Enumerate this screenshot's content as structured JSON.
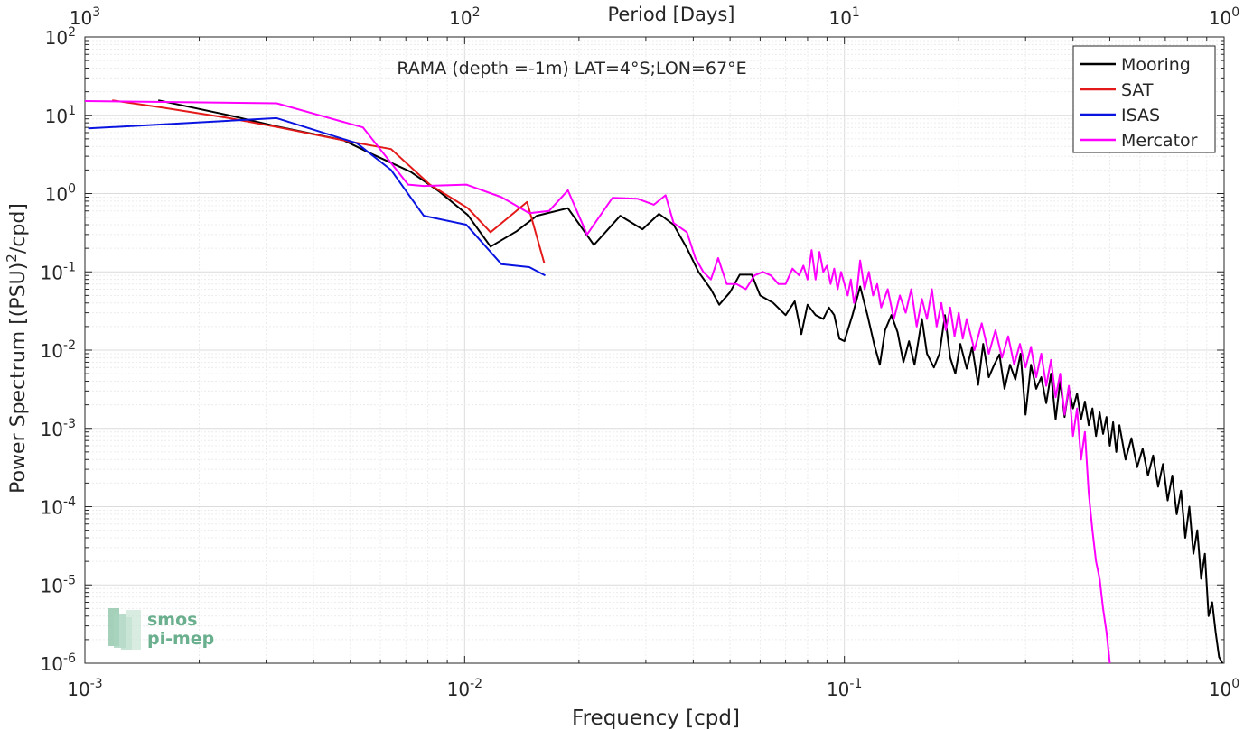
{
  "chart_data": {
    "type": "line",
    "title": "RAMA (depth =-1m) LAT=4°S;LON=67°E",
    "xlabel": "Frequency [cpd]",
    "ylabel_main": "Power Spectrum [(PSU)",
    "ylabel_sup": "2",
    "ylabel_tail": "/cpd]",
    "top_axis_label": "Period [Days]",
    "x_scale": "log",
    "y_scale": "log",
    "xlim": [
      0.001,
      1
    ],
    "ylim": [
      1e-06,
      100
    ],
    "grid": true,
    "legend_position": "top-right",
    "x_ticks": [
      {
        "v": 0.001,
        "base": "10",
        "exp": "-3"
      },
      {
        "v": 0.01,
        "base": "10",
        "exp": "-2"
      },
      {
        "v": 0.1,
        "base": "10",
        "exp": "-1"
      },
      {
        "v": 1,
        "base": "10",
        "exp": "0"
      }
    ],
    "top_ticks": [
      {
        "v": 0.001,
        "base": "10",
        "exp": "3"
      },
      {
        "v": 0.01,
        "base": "10",
        "exp": "2"
      },
      {
        "v": 0.1,
        "base": "10",
        "exp": "1"
      },
      {
        "v": 1,
        "base": "10",
        "exp": "0"
      }
    ],
    "y_ticks": [
      {
        "v": 100,
        "base": "10",
        "exp": "2"
      },
      {
        "v": 10,
        "base": "10",
        "exp": "1"
      },
      {
        "v": 1,
        "base": "10",
        "exp": "0"
      },
      {
        "v": 0.1,
        "base": "10",
        "exp": "-1"
      },
      {
        "v": 0.01,
        "base": "10",
        "exp": "-2"
      },
      {
        "v": 0.001,
        "base": "10",
        "exp": "-3"
      },
      {
        "v": 0.0001,
        "base": "10",
        "exp": "-4"
      },
      {
        "v": 1e-05,
        "base": "10",
        "exp": "-5"
      },
      {
        "v": 1e-06,
        "base": "10",
        "exp": "-6"
      }
    ],
    "series": [
      {
        "name": "Mooring",
        "color": "#000000",
        "points": [
          [
            0.00156,
            15.5
          ],
          [
            0.0024,
            10
          ],
          [
            0.0032,
            7.2
          ],
          [
            0.0048,
            4.8
          ],
          [
            0.0057,
            3.2
          ],
          [
            0.0072,
            1.9
          ],
          [
            0.0086,
            1.05
          ],
          [
            0.0102,
            0.53
          ],
          [
            0.0117,
            0.21
          ],
          [
            0.0137,
            0.33
          ],
          [
            0.0155,
            0.52
          ],
          [
            0.0187,
            0.65
          ],
          [
            0.0219,
            0.22
          ],
          [
            0.0257,
            0.52
          ],
          [
            0.0294,
            0.35
          ],
          [
            0.0325,
            0.55
          ],
          [
            0.0355,
            0.4
          ],
          [
            0.0385,
            0.2
          ],
          [
            0.0413,
            0.1
          ],
          [
            0.0445,
            0.06
          ],
          [
            0.0468,
            0.038
          ],
          [
            0.05,
            0.055
          ],
          [
            0.053,
            0.092
          ],
          [
            0.057,
            0.092
          ],
          [
            0.06,
            0.05
          ],
          [
            0.065,
            0.04
          ],
          [
            0.07,
            0.028
          ],
          [
            0.074,
            0.042
          ],
          [
            0.077,
            0.016
          ],
          [
            0.08,
            0.038
          ],
          [
            0.084,
            0.028
          ],
          [
            0.088,
            0.025
          ],
          [
            0.091,
            0.035
          ],
          [
            0.094,
            0.028
          ],
          [
            0.097,
            0.014
          ],
          [
            0.1,
            0.013
          ],
          [
            0.105,
            0.028
          ],
          [
            0.11,
            0.065
          ],
          [
            0.115,
            0.028
          ],
          [
            0.12,
            0.0115
          ],
          [
            0.124,
            0.0065
          ],
          [
            0.128,
            0.018
          ],
          [
            0.133,
            0.028
          ],
          [
            0.138,
            0.017
          ],
          [
            0.143,
            0.007
          ],
          [
            0.148,
            0.013
          ],
          [
            0.153,
            0.0065
          ],
          [
            0.16,
            0.025
          ],
          [
            0.165,
            0.009
          ],
          [
            0.172,
            0.006
          ],
          [
            0.178,
            0.009
          ],
          [
            0.184,
            0.028
          ],
          [
            0.19,
            0.008
          ],
          [
            0.196,
            0.005
          ],
          [
            0.202,
            0.012
          ],
          [
            0.21,
            0.0058
          ],
          [
            0.217,
            0.011
          ],
          [
            0.225,
            0.0036
          ],
          [
            0.232,
            0.012
          ],
          [
            0.24,
            0.0045
          ],
          [
            0.248,
            0.0065
          ],
          [
            0.256,
            0.0088
          ],
          [
            0.264,
            0.0032
          ],
          [
            0.273,
            0.0065
          ],
          [
            0.282,
            0.0042
          ],
          [
            0.291,
            0.009
          ],
          [
            0.3,
            0.0015
          ],
          [
            0.31,
            0.0065
          ],
          [
            0.32,
            0.0032
          ],
          [
            0.33,
            0.0045
          ],
          [
            0.34,
            0.0021
          ],
          [
            0.35,
            0.005
          ],
          [
            0.36,
            0.0013
          ],
          [
            0.37,
            0.004
          ],
          [
            0.38,
            0.0014
          ],
          [
            0.39,
            0.0033
          ],
          [
            0.4,
            0.0018
          ],
          [
            0.41,
            0.0028
          ],
          [
            0.42,
            0.0013
          ],
          [
            0.43,
            0.0022
          ],
          [
            0.44,
            0.0011
          ],
          [
            0.45,
            0.0018
          ],
          [
            0.46,
            0.0008
          ],
          [
            0.47,
            0.0016
          ],
          [
            0.48,
            0.00085
          ],
          [
            0.49,
            0.0014
          ],
          [
            0.5,
            0.0006
          ],
          [
            0.51,
            0.0012
          ],
          [
            0.52,
            0.0005
          ],
          [
            0.53,
            0.0011
          ],
          [
            0.55,
            0.0004
          ],
          [
            0.57,
            0.00075
          ],
          [
            0.59,
            0.00032
          ],
          [
            0.61,
            0.00055
          ],
          [
            0.63,
            0.00025
          ],
          [
            0.65,
            0.00045
          ],
          [
            0.67,
            0.00018
          ],
          [
            0.69,
            0.00035
          ],
          [
            0.71,
            0.00012
          ],
          [
            0.73,
            0.00025
          ],
          [
            0.75,
            8e-05
          ],
          [
            0.77,
            0.00016
          ],
          [
            0.79,
            4e-05
          ],
          [
            0.81,
            0.0001
          ],
          [
            0.83,
            2.5e-05
          ],
          [
            0.85,
            5e-05
          ],
          [
            0.87,
            1.2e-05
          ],
          [
            0.89,
            2.5e-05
          ],
          [
            0.91,
            4e-06
          ],
          [
            0.93,
            6e-06
          ],
          [
            0.95,
            2.5e-06
          ],
          [
            0.97,
            1.2e-06
          ],
          [
            0.99,
            1e-06
          ]
        ]
      },
      {
        "name": "SAT",
        "color": "#e41a1a",
        "points": [
          [
            0.00118,
            15.5
          ],
          [
            0.0016,
            12.5
          ],
          [
            0.0024,
            9.2
          ],
          [
            0.0032,
            7.1
          ],
          [
            0.005,
            4.6
          ],
          [
            0.0064,
            3.7
          ],
          [
            0.0081,
            1.3
          ],
          [
            0.0102,
            0.65
          ],
          [
            0.0117,
            0.32
          ],
          [
            0.0146,
            0.78
          ],
          [
            0.0162,
            0.13
          ]
        ]
      },
      {
        "name": "ISAS",
        "color": "#0a14e0",
        "points": [
          [
            0.00102,
            6.8
          ],
          [
            0.0032,
            9.2
          ],
          [
            0.0052,
            4.4
          ],
          [
            0.0064,
            2.0
          ],
          [
            0.0078,
            0.52
          ],
          [
            0.0101,
            0.4
          ],
          [
            0.0125,
            0.125
          ],
          [
            0.0148,
            0.115
          ],
          [
            0.0163,
            0.09
          ]
        ]
      },
      {
        "name": "Mercator",
        "color": "#ff00ff",
        "points": [
          [
            0.001,
            15.2
          ],
          [
            0.0032,
            14.2
          ],
          [
            0.0054,
            7.0
          ],
          [
            0.0071,
            1.3
          ],
          [
            0.0078,
            1.25
          ],
          [
            0.0101,
            1.3
          ],
          [
            0.0125,
            0.9
          ],
          [
            0.0148,
            0.56
          ],
          [
            0.0167,
            0.6
          ],
          [
            0.0187,
            1.1
          ],
          [
            0.021,
            0.3
          ],
          [
            0.0245,
            0.88
          ],
          [
            0.0285,
            0.86
          ],
          [
            0.0315,
            0.72
          ],
          [
            0.0338,
            0.95
          ],
          [
            0.0355,
            0.42
          ],
          [
            0.0385,
            0.32
          ],
          [
            0.0405,
            0.15
          ],
          [
            0.0425,
            0.1
          ],
          [
            0.0445,
            0.08
          ],
          [
            0.0465,
            0.15
          ],
          [
            0.049,
            0.07
          ],
          [
            0.052,
            0.07
          ],
          [
            0.055,
            0.06
          ],
          [
            0.058,
            0.09
          ],
          [
            0.061,
            0.1
          ],
          [
            0.064,
            0.09
          ],
          [
            0.067,
            0.07
          ],
          [
            0.07,
            0.07
          ],
          [
            0.073,
            0.11
          ],
          [
            0.076,
            0.09
          ],
          [
            0.078,
            0.12
          ],
          [
            0.08,
            0.08
          ],
          [
            0.082,
            0.19
          ],
          [
            0.084,
            0.08
          ],
          [
            0.086,
            0.18
          ],
          [
            0.088,
            0.1
          ],
          [
            0.09,
            0.12
          ],
          [
            0.092,
            0.07
          ],
          [
            0.094,
            0.11
          ],
          [
            0.096,
            0.06
          ],
          [
            0.098,
            0.1
          ],
          [
            0.1,
            0.07
          ],
          [
            0.102,
            0.05
          ],
          [
            0.104,
            0.08
          ],
          [
            0.106,
            0.04
          ],
          [
            0.108,
            0.06
          ],
          [
            0.11,
            0.14
          ],
          [
            0.113,
            0.06
          ],
          [
            0.116,
            0.1
          ],
          [
            0.119,
            0.05
          ],
          [
            0.122,
            0.07
          ],
          [
            0.125,
            0.035
          ],
          [
            0.13,
            0.06
          ],
          [
            0.135,
            0.025
          ],
          [
            0.14,
            0.05
          ],
          [
            0.145,
            0.03
          ],
          [
            0.15,
            0.06
          ],
          [
            0.155,
            0.02
          ],
          [
            0.16,
            0.045
          ],
          [
            0.165,
            0.025
          ],
          [
            0.17,
            0.06
          ],
          [
            0.175,
            0.02
          ],
          [
            0.18,
            0.04
          ],
          [
            0.185,
            0.018
          ],
          [
            0.19,
            0.035
          ],
          [
            0.195,
            0.015
          ],
          [
            0.2,
            0.03
          ],
          [
            0.205,
            0.014
          ],
          [
            0.21,
            0.025
          ],
          [
            0.22,
            0.01
          ],
          [
            0.23,
            0.022
          ],
          [
            0.24,
            0.009
          ],
          [
            0.25,
            0.018
          ],
          [
            0.26,
            0.008
          ],
          [
            0.27,
            0.015
          ],
          [
            0.28,
            0.0065
          ],
          [
            0.29,
            0.012
          ],
          [
            0.3,
            0.006
          ],
          [
            0.31,
            0.011
          ],
          [
            0.32,
            0.0045
          ],
          [
            0.33,
            0.009
          ],
          [
            0.34,
            0.0035
          ],
          [
            0.35,
            0.0075
          ],
          [
            0.36,
            0.0025
          ],
          [
            0.37,
            0.005
          ],
          [
            0.38,
            0.0015
          ],
          [
            0.39,
            0.0035
          ],
          [
            0.4,
            0.0008
          ],
          [
            0.41,
            0.0018
          ],
          [
            0.42,
            0.0004
          ],
          [
            0.43,
            0.0009
          ],
          [
            0.44,
            0.00015
          ],
          [
            0.45,
            5e-05
          ],
          [
            0.46,
            2e-05
          ],
          [
            0.47,
            1.2e-05
          ],
          [
            0.48,
            5e-06
          ],
          [
            0.49,
            2.5e-06
          ],
          [
            0.5,
            1e-06
          ]
        ]
      }
    ]
  },
  "logo": {
    "line1": "smos",
    "line2": "pi-mep"
  }
}
